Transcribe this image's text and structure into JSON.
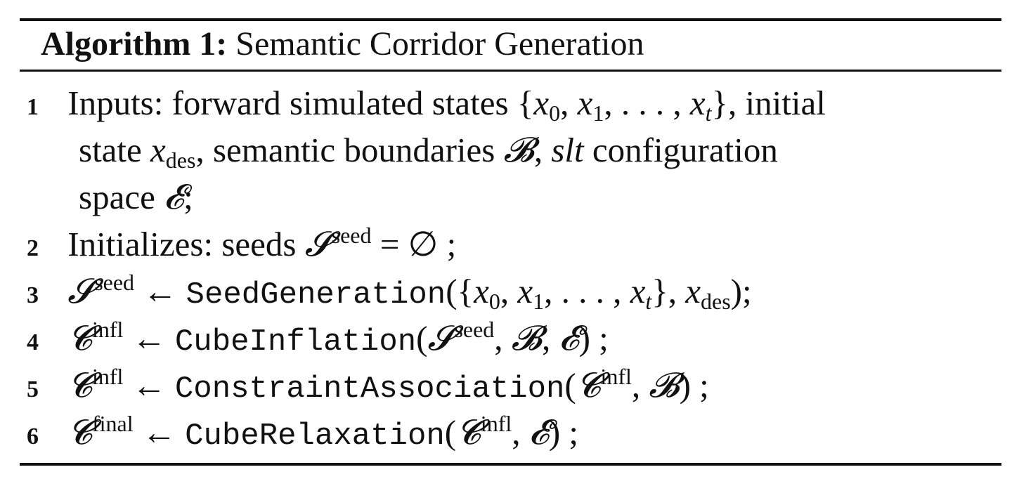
{
  "algorithm": {
    "label": "Algorithm 1:",
    "name": "Semantic Corridor Generation"
  },
  "steps": [
    {
      "num": "1",
      "l1a": "Inputs: forward simulated states",
      "l1b": ", initial",
      "l2a": "state",
      "l2b": ", semantic boundaries",
      "l2c": ",",
      "l2d": "configuration",
      "l3a": "space",
      "l3b": ";"
    },
    {
      "num": "2",
      "text": "Initializes: seeds"
    },
    {
      "num": "3",
      "func": "SeedGeneration"
    },
    {
      "num": "4",
      "func": "CubeInflation"
    },
    {
      "num": "5",
      "func": "ConstraintAssociation"
    },
    {
      "num": "6",
      "func": "CubeRelaxation"
    }
  ]
}
